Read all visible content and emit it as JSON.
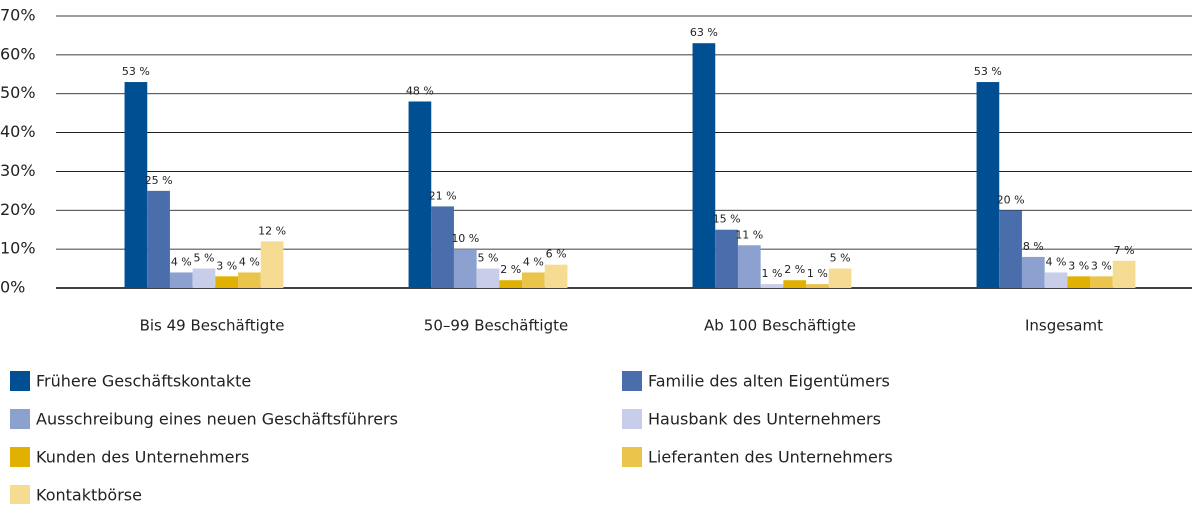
{
  "chart_data": {
    "type": "bar",
    "categories": [
      "Bis 49 Beschäftigte",
      "50–99 Beschäftigte",
      "Ab 100 Beschäftigte",
      "Insgesamt"
    ],
    "series": [
      {
        "name": "Frühere Geschäftskontakte",
        "color": "#004f93",
        "values": [
          53,
          48,
          63,
          53
        ],
        "value_labels": [
          "53 %",
          "48 %",
          "63 %",
          "53 %"
        ]
      },
      {
        "name": "Familie des alten Eigentümers",
        "color": "#4a6eab",
        "values": [
          25,
          21,
          15,
          20
        ],
        "value_labels": [
          "25 %",
          "21 %",
          "15 %",
          "20 %"
        ]
      },
      {
        "name": "Ausschreibung eines neuen Geschäftsführers",
        "color": "#8da1d1",
        "values": [
          4,
          10,
          11,
          8
        ],
        "value_labels": [
          "4 %",
          "10 %",
          "11 %",
          "8 %"
        ]
      },
      {
        "name": "Hausbank des Unternehmers",
        "color": "#c8cee9",
        "values": [
          5,
          5,
          1,
          4
        ],
        "value_labels": [
          "5 %",
          "5 %",
          "1 %",
          "4 %"
        ]
      },
      {
        "name": "Kunden des Unternehmers",
        "color": "#e0b100",
        "values": [
          3,
          2,
          2,
          3
        ],
        "value_labels": [
          "3 %",
          "2 %",
          "2 %",
          "3 %"
        ]
      },
      {
        "name": "Lieferanten des Unternehmers",
        "color": "#ebc44c",
        "values": [
          4,
          4,
          1,
          3
        ],
        "value_labels": [
          "4 %",
          "4 %",
          "1 %",
          "3 %"
        ]
      },
      {
        "name": "Kontaktbörse",
        "color": "#f5dc92",
        "values": [
          12,
          6,
          5,
          7
        ],
        "value_labels": [
          "12 %",
          "6 %",
          "5 %",
          "7 %"
        ]
      }
    ],
    "ylim": [
      0,
      70
    ],
    "yticks": [
      {
        "value": 0,
        "label": "0%"
      },
      {
        "value": 10,
        "label": "10%"
      },
      {
        "value": 20,
        "label": "20%"
      },
      {
        "value": 30,
        "label": "30%"
      },
      {
        "value": 40,
        "label": "40%"
      },
      {
        "value": 50,
        "label": "50%"
      },
      {
        "value": 60,
        "label": "60%"
      },
      {
        "value": 70,
        "label": "70%"
      }
    ],
    "grid": true
  }
}
